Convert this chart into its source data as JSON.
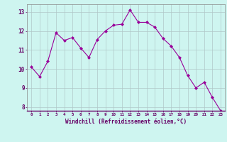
{
  "x": [
    0,
    1,
    2,
    3,
    4,
    5,
    6,
    7,
    8,
    9,
    10,
    11,
    12,
    13,
    14,
    15,
    16,
    17,
    18,
    19,
    20,
    21,
    22,
    23
  ],
  "y": [
    10.1,
    9.6,
    10.4,
    11.9,
    11.5,
    11.65,
    11.1,
    10.6,
    11.55,
    12.0,
    12.3,
    12.35,
    13.1,
    12.45,
    12.45,
    12.2,
    11.6,
    11.2,
    10.6,
    9.65,
    9.0,
    9.3,
    8.5,
    7.8
  ],
  "line_color": "#990099",
  "marker": "D",
  "marker_size": 2.0,
  "bg_color": "#cef5f0",
  "grid_color": "#b0c8c8",
  "xlabel": "Windchill (Refroidissement éolien,°C)",
  "xlabel_color": "#660066",
  "tick_color": "#660066",
  "ylim": [
    7.8,
    13.4
  ],
  "yticks": [
    8,
    9,
    10,
    11,
    12,
    13
  ],
  "xticks": [
    0,
    1,
    2,
    3,
    4,
    5,
    6,
    7,
    8,
    9,
    10,
    11,
    12,
    13,
    14,
    15,
    16,
    17,
    18,
    19,
    20,
    21,
    22,
    23
  ]
}
